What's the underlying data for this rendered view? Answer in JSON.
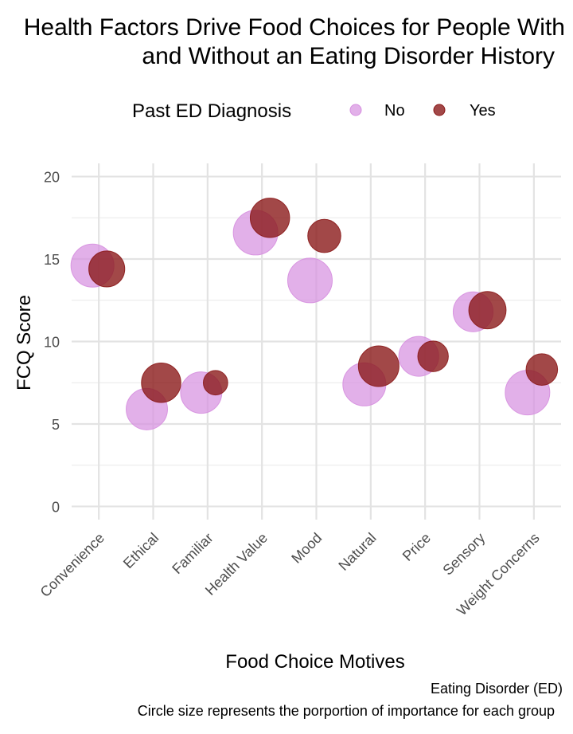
{
  "chart_data": {
    "type": "scatter",
    "title": [
      "Health Factors Drive Food Choices for People With",
      "and Without an Eating Disorder History"
    ],
    "xlabel": "Food Choice Motives",
    "ylabel": "FCQ Score",
    "ylim": [
      -0.8,
      20.8
    ],
    "yticks": [
      0,
      5,
      10,
      15,
      20
    ],
    "categories": [
      "Convenience",
      "Ethical",
      "Familiar",
      "Health Value",
      "Mood",
      "Natural",
      "Price",
      "Sensory",
      "Weight Concerns"
    ],
    "legend": {
      "title": "Past ED Diagnosis",
      "position": "top"
    },
    "series": [
      {
        "name": "No",
        "color": "#D68FDF",
        "values": [
          14.6,
          5.9,
          6.9,
          16.6,
          13.7,
          7.4,
          9.1,
          11.8,
          6.9
        ],
        "size": [
          0.93,
          0.86,
          0.86,
          1.0,
          1.0,
          0.93,
          0.8,
          0.8,
          1.0
        ]
      },
      {
        "name": "Yes",
        "color": "#8B1A1A",
        "values": [
          14.4,
          7.5,
          7.5,
          17.5,
          16.4,
          8.5,
          9.1,
          11.9,
          8.3
        ],
        "size": [
          0.65,
          0.78,
          0.3,
          0.78,
          0.55,
          0.83,
          0.47,
          0.7,
          0.5
        ]
      }
    ],
    "grid": true
  },
  "caption": [
    "Eating Disorder (ED)",
    "Circle size represents the porportion of importance for each group"
  ]
}
